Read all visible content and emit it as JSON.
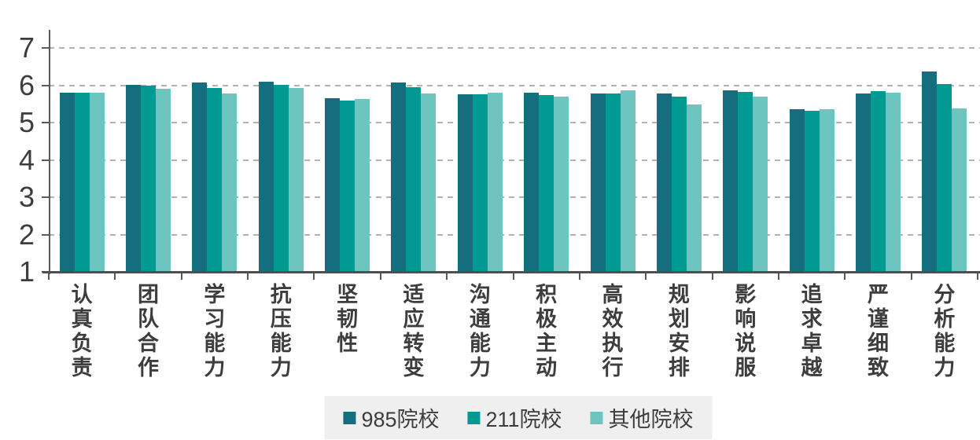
{
  "chart_data": {
    "type": "bar",
    "title": "",
    "xlabel": "",
    "ylabel": "",
    "categories": [
      "认真负责",
      "团队合作",
      "学习能力",
      "抗压能力",
      "坚韧性",
      "适应转变",
      "沟通能力",
      "积极主动",
      "高效执行",
      "规划安排",
      "影响说服",
      "追求卓越",
      "严谨细致",
      "分析能力"
    ],
    "series": [
      {
        "name": "985院校",
        "color": "#156e7d",
        "values": [
          5.8,
          6.02,
          6.08,
          6.1,
          5.65,
          6.07,
          5.76,
          5.79,
          5.78,
          5.77,
          5.87,
          5.35,
          5.77,
          6.37
        ]
      },
      {
        "name": "211院校",
        "color": "#019a92",
        "values": [
          5.8,
          5.99,
          5.92,
          6.02,
          5.6,
          5.95,
          5.76,
          5.73,
          5.78,
          5.7,
          5.83,
          5.32,
          5.85,
          6.04
        ]
      },
      {
        "name": "其他院校",
        "color": "#6ec5c0",
        "values": [
          5.8,
          5.9,
          5.77,
          5.92,
          5.63,
          5.77,
          5.79,
          5.69,
          5.87,
          5.49,
          5.69,
          5.36,
          5.8,
          5.38
        ]
      }
    ],
    "y_axis": {
      "min": 1,
      "max": 7,
      "ticks": [
        1,
        2,
        3,
        4,
        5,
        6,
        7
      ]
    },
    "grid": "horizontal dashed gridlines at each integer tick",
    "legend_position": "bottom-center"
  },
  "colors": {
    "axis": "#4f4f4f",
    "gridline": "#b3b3b3",
    "text": "#3d3d3d",
    "legend_background": "#efefef",
    "background": "#ffffff"
  }
}
